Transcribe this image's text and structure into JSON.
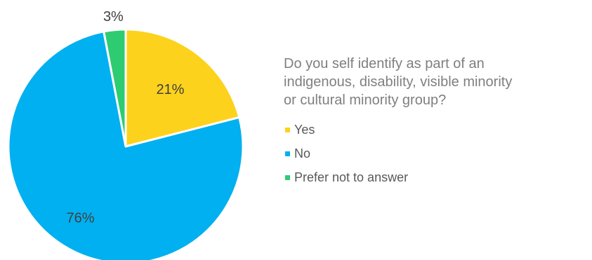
{
  "chart_data": {
    "type": "pie",
    "title": "Do you self identify as part of an indigenous, disability, visible minority or cultural minority group?",
    "categories": [
      "Yes",
      "No",
      "Prefer not to answer"
    ],
    "values": [
      21,
      76,
      3
    ],
    "labels": [
      "21%",
      "76%",
      "3%"
    ],
    "colors": [
      "#fdd21c",
      "#00b0f0",
      "#2ecc71"
    ],
    "legend": "right"
  },
  "legend": {
    "title_lines": [
      "Do you self identify as part of an",
      "indigenous, disability, visible minority",
      "or cultural minority group?"
    ]
  }
}
